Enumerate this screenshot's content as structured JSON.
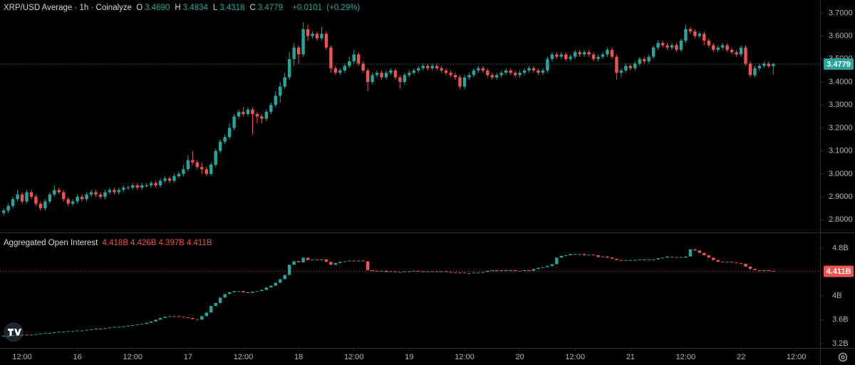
{
  "chart_data": [
    {
      "type": "candlestick",
      "title": "XRP/USD Average · 1h · Coinalyze",
      "legend_values": [
        {
          "label": "O",
          "value": "3.4690"
        },
        {
          "label": "H",
          "value": "3.4834"
        },
        {
          "label": "L",
          "value": "3.4318"
        },
        {
          "label": "C",
          "value": "3.4779"
        }
      ],
      "change": "+0.0101",
      "change_pct": "(+0.29%)",
      "up_color": "#26a69a",
      "down_color": "#ef5350",
      "xlim": [
        -0.8,
        177
      ],
      "xticks": [
        {
          "value": 4,
          "label": "12:00"
        },
        {
          "value": 16,
          "label": "16"
        },
        {
          "value": 28,
          "label": "12:00"
        },
        {
          "value": 40,
          "label": "17"
        },
        {
          "value": 52,
          "label": "12:00"
        },
        {
          "value": 64,
          "label": "18"
        },
        {
          "value": 76,
          "label": "12:00"
        },
        {
          "value": 88,
          "label": "19"
        },
        {
          "value": 100,
          "label": "12:00"
        },
        {
          "value": 112,
          "label": "20"
        },
        {
          "value": 124,
          "label": "12:00"
        },
        {
          "value": 136,
          "label": "21"
        },
        {
          "value": 148,
          "label": "12:00"
        },
        {
          "value": 160,
          "label": "22"
        },
        {
          "value": 172,
          "label": "12:00"
        }
      ],
      "ylim": [
        2.745,
        3.757
      ],
      "yticks": [
        {
          "value": 2.8,
          "label": "2.8000"
        },
        {
          "value": 2.9,
          "label": "2.9000"
        },
        {
          "value": 3.0,
          "label": "3.0000"
        },
        {
          "value": 3.1,
          "label": "3.1000"
        },
        {
          "value": 3.2,
          "label": "3.2000"
        },
        {
          "value": 3.3,
          "label": "3.3000"
        },
        {
          "value": 3.4,
          "label": "3.4000"
        },
        {
          "value": 3.5,
          "label": "3.5000"
        },
        {
          "value": 3.6,
          "label": "3.6000"
        },
        {
          "value": 3.7,
          "label": "3.7000"
        }
      ],
      "open": [
        2.83,
        2.84,
        2.86,
        2.89,
        2.91,
        2.88,
        2.92,
        2.9,
        2.87,
        2.85,
        2.88,
        2.91,
        2.93,
        2.92,
        2.89,
        2.87,
        2.88,
        2.9,
        2.89,
        2.91,
        2.92,
        2.91,
        2.9,
        2.92,
        2.93,
        2.92,
        2.93,
        2.94,
        2.94,
        2.95,
        2.94,
        2.95,
        2.95,
        2.96,
        2.95,
        2.97,
        2.98,
        2.97,
        2.99,
        3.0,
        3.02,
        3.06,
        3.05,
        3.03,
        3.02,
        3.0,
        3.04,
        3.1,
        3.14,
        3.16,
        3.2,
        3.25,
        3.27,
        3.26,
        3.28,
        3.26,
        3.25,
        3.24,
        3.27,
        3.3,
        3.34,
        3.38,
        3.42,
        3.5,
        3.55,
        3.52,
        3.63,
        3.6,
        3.61,
        3.59,
        3.61,
        3.55,
        3.46,
        3.44,
        3.45,
        3.47,
        3.49,
        3.52,
        3.48,
        3.45,
        3.4,
        3.43,
        3.44,
        3.42,
        3.44,
        3.45,
        3.42,
        3.4,
        3.43,
        3.44,
        3.45,
        3.46,
        3.47,
        3.46,
        3.47,
        3.46,
        3.45,
        3.44,
        3.43,
        3.42,
        3.38,
        3.42,
        3.43,
        3.45,
        3.46,
        3.45,
        3.43,
        3.42,
        3.43,
        3.44,
        3.45,
        3.44,
        3.43,
        3.44,
        3.45,
        3.46,
        3.45,
        3.44,
        3.45,
        3.5,
        3.52,
        3.51,
        3.52,
        3.5,
        3.51,
        3.53,
        3.52,
        3.53,
        3.52,
        3.5,
        3.51,
        3.52,
        3.54,
        3.51,
        3.44,
        3.45,
        3.47,
        3.46,
        3.48,
        3.5,
        3.49,
        3.51,
        3.55,
        3.57,
        3.56,
        3.55,
        3.56,
        3.54,
        3.58,
        3.63,
        3.62,
        3.6,
        3.61,
        3.58,
        3.56,
        3.54,
        3.55,
        3.56,
        3.54,
        3.53,
        3.52,
        3.55,
        3.48,
        3.43,
        3.46,
        3.47,
        3.48,
        3.469
      ],
      "high": [
        2.85,
        2.87,
        2.9,
        2.93,
        2.92,
        2.93,
        2.93,
        2.91,
        2.88,
        2.89,
        2.92,
        2.95,
        2.94,
        2.93,
        2.9,
        2.89,
        2.91,
        2.91,
        2.92,
        2.93,
        2.93,
        2.92,
        2.93,
        2.94,
        2.94,
        2.94,
        2.95,
        2.95,
        2.96,
        2.96,
        2.96,
        2.96,
        2.97,
        2.97,
        2.98,
        2.99,
        2.99,
        3.0,
        3.01,
        3.04,
        3.08,
        3.1,
        3.06,
        3.05,
        3.03,
        3.05,
        3.11,
        3.15,
        3.17,
        3.22,
        3.26,
        3.28,
        3.29,
        3.29,
        3.29,
        3.27,
        3.26,
        3.28,
        3.31,
        3.36,
        3.4,
        3.44,
        3.53,
        3.57,
        3.56,
        3.66,
        3.65,
        3.62,
        3.62,
        3.64,
        3.62,
        3.56,
        3.47,
        3.46,
        3.48,
        3.51,
        3.54,
        3.53,
        3.49,
        3.46,
        3.44,
        3.45,
        3.45,
        3.45,
        3.46,
        3.46,
        3.43,
        3.44,
        3.45,
        3.46,
        3.47,
        3.48,
        3.48,
        3.48,
        3.48,
        3.47,
        3.46,
        3.45,
        3.44,
        3.43,
        3.43,
        3.44,
        3.46,
        3.47,
        3.47,
        3.46,
        3.44,
        3.44,
        3.45,
        3.46,
        3.46,
        3.45,
        3.45,
        3.46,
        3.47,
        3.47,
        3.46,
        3.46,
        3.51,
        3.53,
        3.53,
        3.53,
        3.53,
        3.52,
        3.54,
        3.54,
        3.54,
        3.54,
        3.53,
        3.52,
        3.53,
        3.55,
        3.55,
        3.52,
        3.46,
        3.48,
        3.48,
        3.49,
        3.51,
        3.51,
        3.52,
        3.56,
        3.58,
        3.58,
        3.57,
        3.57,
        3.57,
        3.59,
        3.65,
        3.64,
        3.63,
        3.62,
        3.62,
        3.59,
        3.57,
        3.56,
        3.57,
        3.57,
        3.55,
        3.54,
        3.56,
        3.56,
        3.49,
        3.47,
        3.48,
        3.49,
        3.49,
        3.4834
      ],
      "low": [
        2.82,
        2.83,
        2.85,
        2.88,
        2.87,
        2.87,
        2.89,
        2.86,
        2.84,
        2.84,
        2.87,
        2.9,
        2.91,
        2.88,
        2.86,
        2.86,
        2.87,
        2.88,
        2.88,
        2.9,
        2.9,
        2.89,
        2.89,
        2.91,
        2.91,
        2.91,
        2.92,
        2.93,
        2.93,
        2.93,
        2.93,
        2.94,
        2.94,
        2.94,
        2.94,
        2.96,
        2.96,
        2.96,
        2.98,
        2.99,
        3.01,
        3.04,
        3.02,
        3.0,
        2.99,
        2.99,
        3.03,
        3.09,
        3.13,
        3.15,
        3.19,
        3.24,
        3.25,
        3.25,
        3.17,
        3.22,
        3.22,
        3.23,
        3.26,
        3.29,
        3.31,
        3.37,
        3.41,
        3.47,
        3.48,
        3.51,
        3.58,
        3.59,
        3.58,
        3.58,
        3.54,
        3.44,
        3.43,
        3.43,
        3.44,
        3.46,
        3.48,
        3.47,
        3.44,
        3.36,
        3.39,
        3.42,
        3.41,
        3.41,
        3.43,
        3.41,
        3.37,
        3.39,
        3.42,
        3.43,
        3.44,
        3.45,
        3.45,
        3.45,
        3.45,
        3.44,
        3.43,
        3.42,
        3.41,
        3.37,
        3.37,
        3.41,
        3.42,
        3.44,
        3.44,
        3.42,
        3.41,
        3.41,
        3.42,
        3.43,
        3.43,
        3.42,
        3.42,
        3.43,
        3.44,
        3.44,
        3.43,
        3.43,
        3.44,
        3.49,
        3.5,
        3.5,
        3.49,
        3.49,
        3.5,
        3.51,
        3.51,
        3.51,
        3.49,
        3.49,
        3.5,
        3.51,
        3.5,
        3.41,
        3.42,
        3.44,
        3.45,
        3.45,
        3.47,
        3.48,
        3.48,
        3.5,
        3.54,
        3.55,
        3.54,
        3.54,
        3.53,
        3.53,
        3.57,
        3.61,
        3.59,
        3.59,
        3.56,
        3.55,
        3.53,
        3.53,
        3.54,
        3.53,
        3.52,
        3.51,
        3.51,
        3.47,
        3.42,
        3.42,
        3.45,
        3.46,
        3.46,
        3.4318
      ],
      "close": [
        2.84,
        2.86,
        2.89,
        2.91,
        2.88,
        2.92,
        2.9,
        2.87,
        2.85,
        2.88,
        2.91,
        2.93,
        2.92,
        2.89,
        2.87,
        2.88,
        2.9,
        2.89,
        2.91,
        2.92,
        2.91,
        2.9,
        2.92,
        2.93,
        2.92,
        2.93,
        2.94,
        2.94,
        2.95,
        2.94,
        2.95,
        2.95,
        2.96,
        2.95,
        2.97,
        2.98,
        2.97,
        2.99,
        3.0,
        3.02,
        3.06,
        3.05,
        3.03,
        3.02,
        3.0,
        3.04,
        3.1,
        3.14,
        3.16,
        3.2,
        3.25,
        3.27,
        3.26,
        3.28,
        3.26,
        3.25,
        3.24,
        3.27,
        3.3,
        3.34,
        3.38,
        3.42,
        3.5,
        3.55,
        3.52,
        3.63,
        3.6,
        3.61,
        3.59,
        3.61,
        3.55,
        3.46,
        3.44,
        3.45,
        3.47,
        3.49,
        3.52,
        3.48,
        3.45,
        3.4,
        3.43,
        3.44,
        3.42,
        3.44,
        3.45,
        3.42,
        3.4,
        3.43,
        3.44,
        3.45,
        3.46,
        3.47,
        3.46,
        3.47,
        3.46,
        3.45,
        3.44,
        3.43,
        3.42,
        3.38,
        3.42,
        3.43,
        3.45,
        3.46,
        3.45,
        3.43,
        3.42,
        3.43,
        3.44,
        3.45,
        3.44,
        3.43,
        3.44,
        3.45,
        3.46,
        3.45,
        3.44,
        3.45,
        3.5,
        3.52,
        3.51,
        3.52,
        3.5,
        3.51,
        3.53,
        3.52,
        3.53,
        3.52,
        3.5,
        3.51,
        3.52,
        3.54,
        3.51,
        3.44,
        3.45,
        3.47,
        3.46,
        3.48,
        3.5,
        3.49,
        3.51,
        3.55,
        3.57,
        3.56,
        3.55,
        3.56,
        3.54,
        3.58,
        3.63,
        3.62,
        3.6,
        3.61,
        3.58,
        3.56,
        3.54,
        3.55,
        3.56,
        3.54,
        3.53,
        3.52,
        3.55,
        3.48,
        3.43,
        3.46,
        3.47,
        3.48,
        3.469,
        3.4779
      ]
    },
    {
      "type": "candlestick",
      "title": "Aggregated Open Interest",
      "legend_values": [
        "4.418B",
        "4.426B",
        "4.397B",
        "4.411B"
      ],
      "up_color": "#26a69a",
      "down_color": "#ef5350",
      "xlim": [
        -0.8,
        177
      ],
      "ylim": [
        3.128,
        5.051
      ],
      "yticks": [
        {
          "value": 3.2,
          "label": "3.2B"
        },
        {
          "value": 3.6,
          "label": "3.6B"
        },
        {
          "value": 4,
          "label": "4B"
        },
        {
          "value": 4.8,
          "label": "4.8B"
        }
      ],
      "open": [
        3.32,
        3.33,
        3.33,
        3.34,
        3.34,
        3.35,
        3.34,
        3.35,
        3.36,
        3.37,
        3.38,
        3.38,
        3.39,
        3.4,
        3.4,
        3.41,
        3.41,
        3.42,
        3.42,
        3.43,
        3.44,
        3.45,
        3.45,
        3.46,
        3.47,
        3.48,
        3.48,
        3.49,
        3.5,
        3.51,
        3.52,
        3.53,
        3.55,
        3.57,
        3.6,
        3.63,
        3.65,
        3.66,
        3.66,
        3.65,
        3.64,
        3.63,
        3.61,
        3.6,
        3.66,
        3.72,
        3.83,
        3.88,
        3.97,
        4.03,
        4.06,
        4.08,
        4.08,
        4.06,
        4.05,
        4.07,
        4.08,
        4.1,
        4.14,
        4.17,
        4.22,
        4.28,
        4.35,
        4.52,
        4.58,
        4.56,
        4.64,
        4.6,
        4.61,
        4.6,
        4.61,
        4.57,
        4.52,
        4.55,
        4.57,
        4.58,
        4.59,
        4.58,
        4.59,
        4.58,
        4.43,
        4.42,
        4.41,
        4.42,
        4.4,
        4.41,
        4.4,
        4.4,
        4.41,
        4.41,
        4.42,
        4.41,
        4.4,
        4.41,
        4.4,
        4.41,
        4.41,
        4.4,
        4.39,
        4.38,
        4.39,
        4.38,
        4.38,
        4.39,
        4.39,
        4.4,
        4.42,
        4.43,
        4.43,
        4.42,
        4.43,
        4.43,
        4.42,
        4.42,
        4.43,
        4.42,
        4.45,
        4.47,
        4.48,
        4.5,
        4.53,
        4.64,
        4.67,
        4.68,
        4.7,
        4.7,
        4.7,
        4.68,
        4.69,
        4.68,
        4.65,
        4.66,
        4.64,
        4.62,
        4.6,
        4.59,
        4.6,
        4.6,
        4.6,
        4.61,
        4.61,
        4.61,
        4.61,
        4.63,
        4.64,
        4.66,
        4.65,
        4.65,
        4.64,
        4.66,
        4.78,
        4.76,
        4.72,
        4.68,
        4.64,
        4.6,
        4.57,
        4.56,
        4.57,
        4.56,
        4.55,
        4.54,
        4.49,
        4.45,
        4.43,
        4.42,
        4.43,
        4.418
      ],
      "close": [
        3.33,
        3.33,
        3.34,
        3.34,
        3.35,
        3.34,
        3.35,
        3.36,
        3.37,
        3.38,
        3.38,
        3.39,
        3.4,
        3.4,
        3.41,
        3.41,
        3.42,
        3.42,
        3.43,
        3.44,
        3.45,
        3.45,
        3.46,
        3.47,
        3.48,
        3.48,
        3.49,
        3.5,
        3.51,
        3.52,
        3.53,
        3.55,
        3.57,
        3.6,
        3.63,
        3.65,
        3.66,
        3.66,
        3.65,
        3.64,
        3.63,
        3.61,
        3.6,
        3.66,
        3.72,
        3.83,
        3.88,
        3.97,
        4.03,
        4.06,
        4.08,
        4.08,
        4.06,
        4.05,
        4.07,
        4.08,
        4.1,
        4.14,
        4.17,
        4.22,
        4.28,
        4.35,
        4.52,
        4.58,
        4.56,
        4.64,
        4.6,
        4.61,
        4.6,
        4.61,
        4.57,
        4.52,
        4.55,
        4.57,
        4.58,
        4.59,
        4.58,
        4.59,
        4.58,
        4.43,
        4.42,
        4.41,
        4.42,
        4.4,
        4.41,
        4.4,
        4.4,
        4.41,
        4.41,
        4.42,
        4.41,
        4.4,
        4.41,
        4.4,
        4.41,
        4.41,
        4.4,
        4.39,
        4.38,
        4.39,
        4.38,
        4.38,
        4.39,
        4.39,
        4.4,
        4.42,
        4.43,
        4.43,
        4.42,
        4.43,
        4.43,
        4.42,
        4.42,
        4.43,
        4.42,
        4.45,
        4.47,
        4.48,
        4.5,
        4.53,
        4.64,
        4.67,
        4.68,
        4.7,
        4.7,
        4.7,
        4.68,
        4.69,
        4.68,
        4.65,
        4.66,
        4.64,
        4.62,
        4.6,
        4.59,
        4.6,
        4.6,
        4.6,
        4.61,
        4.61,
        4.61,
        4.61,
        4.63,
        4.64,
        4.66,
        4.65,
        4.65,
        4.64,
        4.66,
        4.78,
        4.76,
        4.72,
        4.68,
        4.64,
        4.6,
        4.57,
        4.56,
        4.57,
        4.56,
        4.55,
        4.54,
        4.49,
        4.45,
        4.43,
        4.42,
        4.43,
        4.418,
        4.411
      ]
    }
  ]
}
